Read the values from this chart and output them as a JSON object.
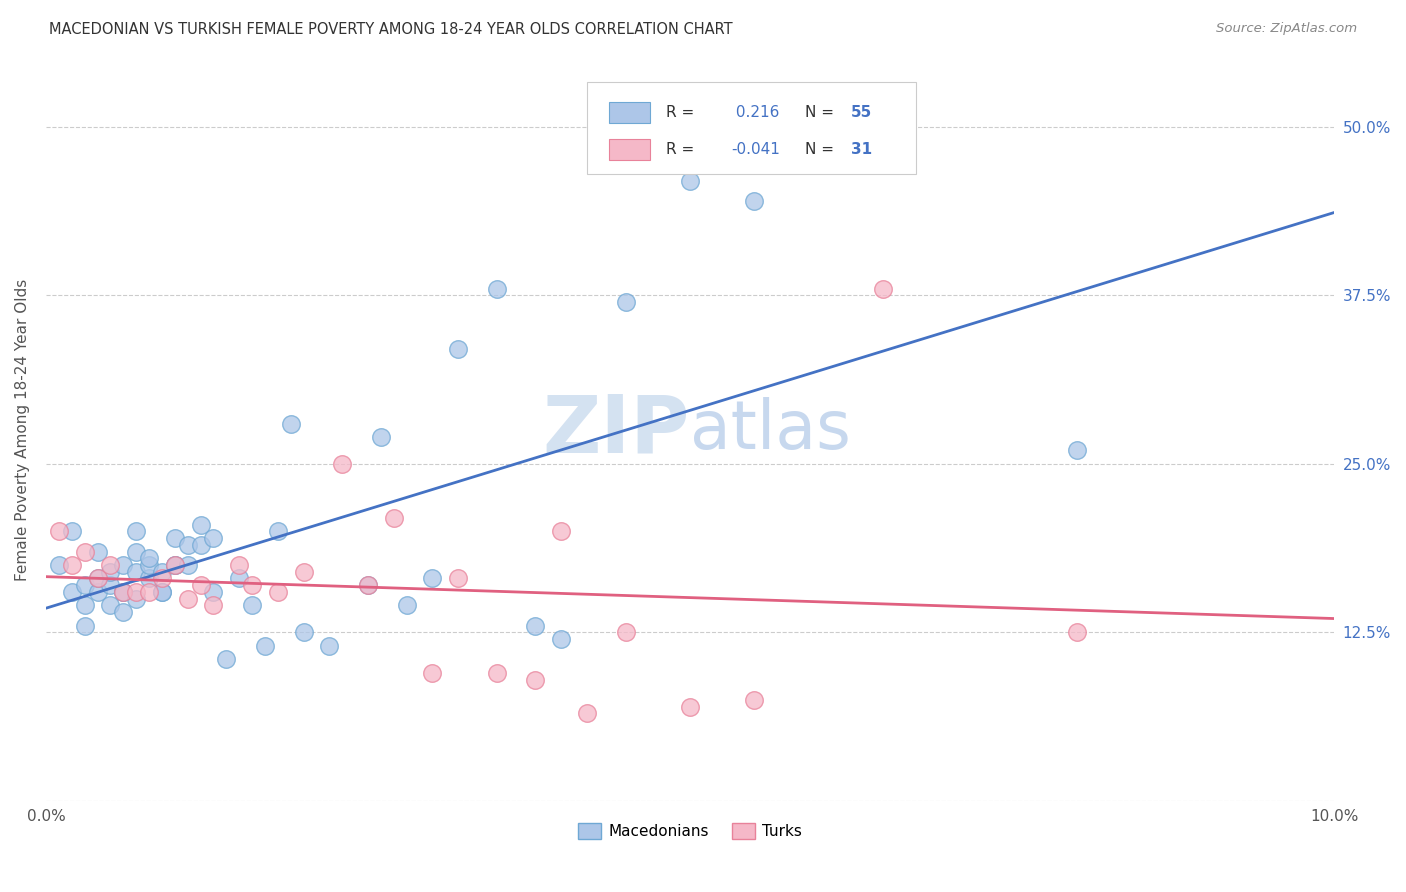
{
  "title": "MACEDONIAN VS TURKISH FEMALE POVERTY AMONG 18-24 YEAR OLDS CORRELATION CHART",
  "source": "Source: ZipAtlas.com",
  "ylabel": "Female Poverty Among 18-24 Year Olds",
  "xlim": [
    0.0,
    0.1
  ],
  "ylim": [
    0.0,
    0.55
  ],
  "xtick_pos": [
    0.0,
    0.02,
    0.04,
    0.06,
    0.08,
    0.1
  ],
  "xticklabels": [
    "0.0%",
    "",
    "",
    "",
    "",
    "10.0%"
  ],
  "ytick_pos": [
    0.0,
    0.125,
    0.25,
    0.375,
    0.5
  ],
  "yticklabels_right": [
    "",
    "12.5%",
    "25.0%",
    "37.5%",
    "50.0%"
  ],
  "macedonian_r": 0.216,
  "macedonian_n": 55,
  "turkish_r": -0.041,
  "turkish_n": 31,
  "mac_color": "#adc6e8",
  "mac_edge": "#6fa8d4",
  "turk_color": "#f5b8c8",
  "turk_edge": "#e8829a",
  "line_mac": "#4472c4",
  "line_turk": "#e06080",
  "watermark_color": "#d0dff0",
  "mac_x": [
    0.001,
    0.002,
    0.002,
    0.003,
    0.003,
    0.003,
    0.004,
    0.004,
    0.004,
    0.005,
    0.005,
    0.005,
    0.006,
    0.006,
    0.006,
    0.006,
    0.007,
    0.007,
    0.007,
    0.007,
    0.008,
    0.008,
    0.008,
    0.009,
    0.009,
    0.009,
    0.01,
    0.01,
    0.01,
    0.011,
    0.011,
    0.012,
    0.012,
    0.013,
    0.013,
    0.014,
    0.015,
    0.016,
    0.017,
    0.018,
    0.019,
    0.02,
    0.022,
    0.025,
    0.026,
    0.028,
    0.03,
    0.032,
    0.035,
    0.038,
    0.04,
    0.045,
    0.05,
    0.055,
    0.08
  ],
  "mac_y": [
    0.175,
    0.155,
    0.2,
    0.145,
    0.16,
    0.13,
    0.155,
    0.185,
    0.165,
    0.16,
    0.145,
    0.17,
    0.155,
    0.14,
    0.155,
    0.175,
    0.15,
    0.17,
    0.185,
    0.2,
    0.165,
    0.175,
    0.18,
    0.155,
    0.17,
    0.155,
    0.175,
    0.175,
    0.195,
    0.175,
    0.19,
    0.19,
    0.205,
    0.195,
    0.155,
    0.105,
    0.165,
    0.145,
    0.115,
    0.2,
    0.28,
    0.125,
    0.115,
    0.16,
    0.27,
    0.145,
    0.165,
    0.335,
    0.38,
    0.13,
    0.12,
    0.37,
    0.46,
    0.445,
    0.26
  ],
  "turk_x": [
    0.001,
    0.002,
    0.003,
    0.004,
    0.005,
    0.006,
    0.007,
    0.008,
    0.009,
    0.01,
    0.011,
    0.012,
    0.013,
    0.015,
    0.016,
    0.018,
    0.02,
    0.023,
    0.025,
    0.027,
    0.03,
    0.032,
    0.035,
    0.038,
    0.04,
    0.042,
    0.045,
    0.05,
    0.055,
    0.065,
    0.08
  ],
  "turk_y": [
    0.2,
    0.175,
    0.185,
    0.165,
    0.175,
    0.155,
    0.155,
    0.155,
    0.165,
    0.175,
    0.15,
    0.16,
    0.145,
    0.175,
    0.16,
    0.155,
    0.17,
    0.25,
    0.16,
    0.21,
    0.095,
    0.165,
    0.095,
    0.09,
    0.2,
    0.065,
    0.125,
    0.07,
    0.075,
    0.38,
    0.125
  ]
}
